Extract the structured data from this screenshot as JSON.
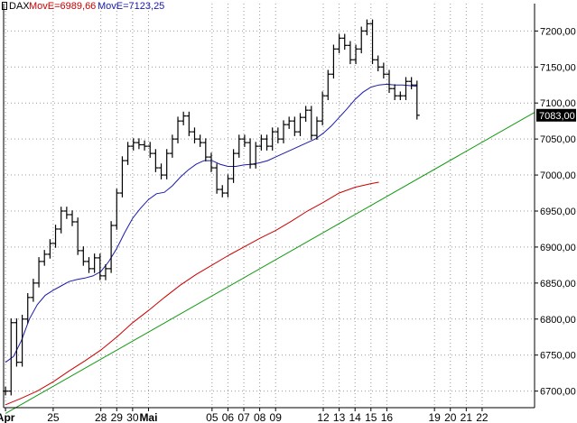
{
  "header": {
    "symbol": "DAX",
    "ma1": "MovE=6989,66",
    "ma2": "MovE=7123,25"
  },
  "last_price_label": "7083,00",
  "colors": {
    "candles": "#000000",
    "ma_short": "#1a1aaa",
    "ma_long": "#cc0000",
    "trendline": "#119911",
    "last_label_bg": "#000000",
    "grid": "#999999"
  },
  "chart_data": {
    "type": "line",
    "title": "",
    "xlabel": "",
    "ylabel": "",
    "ylim": [
      6677,
      7238
    ],
    "y_ticks": [
      "6700,00",
      "6750,00",
      "6800,00",
      "6850,00",
      "6900,00",
      "6950,00",
      "7000,00",
      "7050,00",
      "7100,00",
      "7150,00",
      "7200,00"
    ],
    "y_tick_values": [
      6700,
      6750,
      6800,
      6850,
      6900,
      6950,
      7000,
      7050,
      7100,
      7150,
      7200
    ],
    "x_ticks": [
      {
        "label": "Apr",
        "day": 0,
        "bold": true
      },
      {
        "label": "25",
        "day": 3
      },
      {
        "label": "28",
        "day": 6
      },
      {
        "label": "29",
        "day": 7
      },
      {
        "label": "30",
        "day": 8
      },
      {
        "label": "Mai",
        "day": 9,
        "bold": true
      },
      {
        "label": "05",
        "day": 13
      },
      {
        "label": "06",
        "day": 14
      },
      {
        "label": "07",
        "day": 15
      },
      {
        "label": "08",
        "day": 16
      },
      {
        "label": "09",
        "day": 17
      },
      {
        "label": "12",
        "day": 20
      },
      {
        "label": "13",
        "day": 21
      },
      {
        "label": "14",
        "day": 22
      },
      {
        "label": "15",
        "day": 23
      },
      {
        "label": "16",
        "day": 24
      },
      {
        "label": "19",
        "day": 27
      },
      {
        "label": "20",
        "day": 28
      },
      {
        "label": "21",
        "day": 29
      },
      {
        "label": "22",
        "day": 30
      }
    ],
    "x_range": [
      -0.12,
      33.3
    ],
    "series": [
      {
        "key": "price",
        "style": "bars",
        "values": [
          [
            0.0,
            6700
          ],
          [
            0.35,
            6795
          ],
          [
            0.7,
            6740
          ],
          [
            1.05,
            6800
          ],
          [
            1.4,
            6830
          ],
          [
            1.75,
            6850
          ],
          [
            2.1,
            6880
          ],
          [
            2.45,
            6890
          ],
          [
            2.8,
            6905
          ],
          [
            3.15,
            6925
          ],
          [
            3.5,
            6950
          ],
          [
            3.85,
            6945
          ],
          [
            4.2,
            6935
          ],
          [
            4.55,
            6895
          ],
          [
            4.9,
            6880
          ],
          [
            5.25,
            6870
          ],
          [
            5.6,
            6885
          ],
          [
            5.95,
            6860
          ],
          [
            6.3,
            6870
          ],
          [
            6.65,
            6930
          ],
          [
            7.0,
            6975
          ],
          [
            7.35,
            7020
          ],
          [
            7.7,
            7040
          ],
          [
            8.05,
            7045
          ],
          [
            8.4,
            7042
          ],
          [
            8.75,
            7040
          ],
          [
            9.1,
            7030
          ],
          [
            9.45,
            7010
          ],
          [
            9.8,
            7000
          ],
          [
            10.15,
            7030
          ],
          [
            10.5,
            7050
          ],
          [
            10.85,
            7075
          ],
          [
            11.2,
            7082
          ],
          [
            11.55,
            7060
          ],
          [
            11.9,
            7050
          ],
          [
            12.25,
            7045
          ],
          [
            12.6,
            7025
          ],
          [
            12.95,
            7010
          ],
          [
            13.3,
            6980
          ],
          [
            13.65,
            6975
          ],
          [
            14.0,
            6995
          ],
          [
            14.35,
            7030
          ],
          [
            14.7,
            7050
          ],
          [
            15.05,
            7045
          ],
          [
            15.4,
            7015
          ],
          [
            15.75,
            7040
          ],
          [
            16.1,
            7050
          ],
          [
            16.45,
            7040
          ],
          [
            16.8,
            7060
          ],
          [
            17.15,
            7050
          ],
          [
            17.5,
            7070
          ],
          [
            17.85,
            7075
          ],
          [
            18.2,
            7060
          ],
          [
            18.55,
            7080
          ],
          [
            18.9,
            7090
          ],
          [
            19.25,
            7055
          ],
          [
            19.6,
            7075
          ],
          [
            19.95,
            7110
          ],
          [
            20.3,
            7140
          ],
          [
            20.65,
            7175
          ],
          [
            21.0,
            7190
          ],
          [
            21.35,
            7180
          ],
          [
            21.7,
            7160
          ],
          [
            22.05,
            7175
          ],
          [
            22.4,
            7200
          ],
          [
            22.75,
            7210
          ],
          [
            23.1,
            7160
          ],
          [
            23.45,
            7150
          ],
          [
            23.8,
            7140
          ],
          [
            24.15,
            7120
          ],
          [
            24.5,
            7110
          ],
          [
            24.85,
            7110
          ],
          [
            25.2,
            7130
          ],
          [
            25.55,
            7125
          ],
          [
            25.9,
            7083
          ]
        ]
      },
      {
        "key": "ma_short",
        "style": "line",
        "values": [
          [
            0.0,
            6740
          ],
          [
            0.5,
            6748
          ],
          [
            1.0,
            6770
          ],
          [
            1.5,
            6800
          ],
          [
            2.0,
            6820
          ],
          [
            2.5,
            6833
          ],
          [
            3.0,
            6840
          ],
          [
            3.5,
            6846
          ],
          [
            4.0,
            6852
          ],
          [
            4.5,
            6855
          ],
          [
            5.0,
            6857
          ],
          [
            5.5,
            6860
          ],
          [
            6.0,
            6866
          ],
          [
            6.5,
            6880
          ],
          [
            7.0,
            6898
          ],
          [
            7.5,
            6920
          ],
          [
            8.0,
            6940
          ],
          [
            8.5,
            6954
          ],
          [
            9.0,
            6966
          ],
          [
            9.5,
            6974
          ],
          [
            10.0,
            6976
          ],
          [
            10.5,
            6985
          ],
          [
            11.0,
            6997
          ],
          [
            11.5,
            7007
          ],
          [
            12.0,
            7015
          ],
          [
            12.5,
            7020
          ],
          [
            13.0,
            7020
          ],
          [
            13.5,
            7015
          ],
          [
            14.0,
            7012
          ],
          [
            14.5,
            7012
          ],
          [
            15.0,
            7014
          ],
          [
            15.5,
            7015
          ],
          [
            16.0,
            7017
          ],
          [
            16.5,
            7020
          ],
          [
            17.0,
            7025
          ],
          [
            17.5,
            7030
          ],
          [
            18.0,
            7035
          ],
          [
            18.5,
            7040
          ],
          [
            19.0,
            7045
          ],
          [
            19.5,
            7050
          ],
          [
            20.0,
            7058
          ],
          [
            20.5,
            7068
          ],
          [
            21.0,
            7080
          ],
          [
            21.5,
            7092
          ],
          [
            22.0,
            7105
          ],
          [
            22.5,
            7115
          ],
          [
            23.0,
            7122
          ],
          [
            23.5,
            7125
          ],
          [
            24.0,
            7126
          ],
          [
            24.5,
            7125
          ],
          [
            25.0,
            7125
          ],
          [
            25.5,
            7124
          ],
          [
            25.9,
            7123
          ]
        ]
      },
      {
        "key": "ma_long",
        "style": "line",
        "values": [
          [
            0.0,
            6681
          ],
          [
            1.0,
            6690
          ],
          [
            2.0,
            6700
          ],
          [
            3.0,
            6713
          ],
          [
            4.0,
            6728
          ],
          [
            5.0,
            6742
          ],
          [
            6.0,
            6757
          ],
          [
            7.0,
            6775
          ],
          [
            8.0,
            6795
          ],
          [
            9.0,
            6812
          ],
          [
            10.0,
            6830
          ],
          [
            11.0,
            6847
          ],
          [
            12.0,
            6862
          ],
          [
            13.0,
            6875
          ],
          [
            14.0,
            6888
          ],
          [
            15.0,
            6900
          ],
          [
            16.0,
            6912
          ],
          [
            17.0,
            6923
          ],
          [
            18.0,
            6936
          ],
          [
            19.0,
            6950
          ],
          [
            20.0,
            6962
          ],
          [
            21.0,
            6975
          ],
          [
            22.0,
            6983
          ],
          [
            23.0,
            6988
          ],
          [
            23.5,
            6990
          ]
        ]
      },
      {
        "key": "trendline",
        "style": "line",
        "values": [
          [
            0.0,
            6669
          ],
          [
            33.3,
            7087
          ]
        ]
      }
    ]
  }
}
